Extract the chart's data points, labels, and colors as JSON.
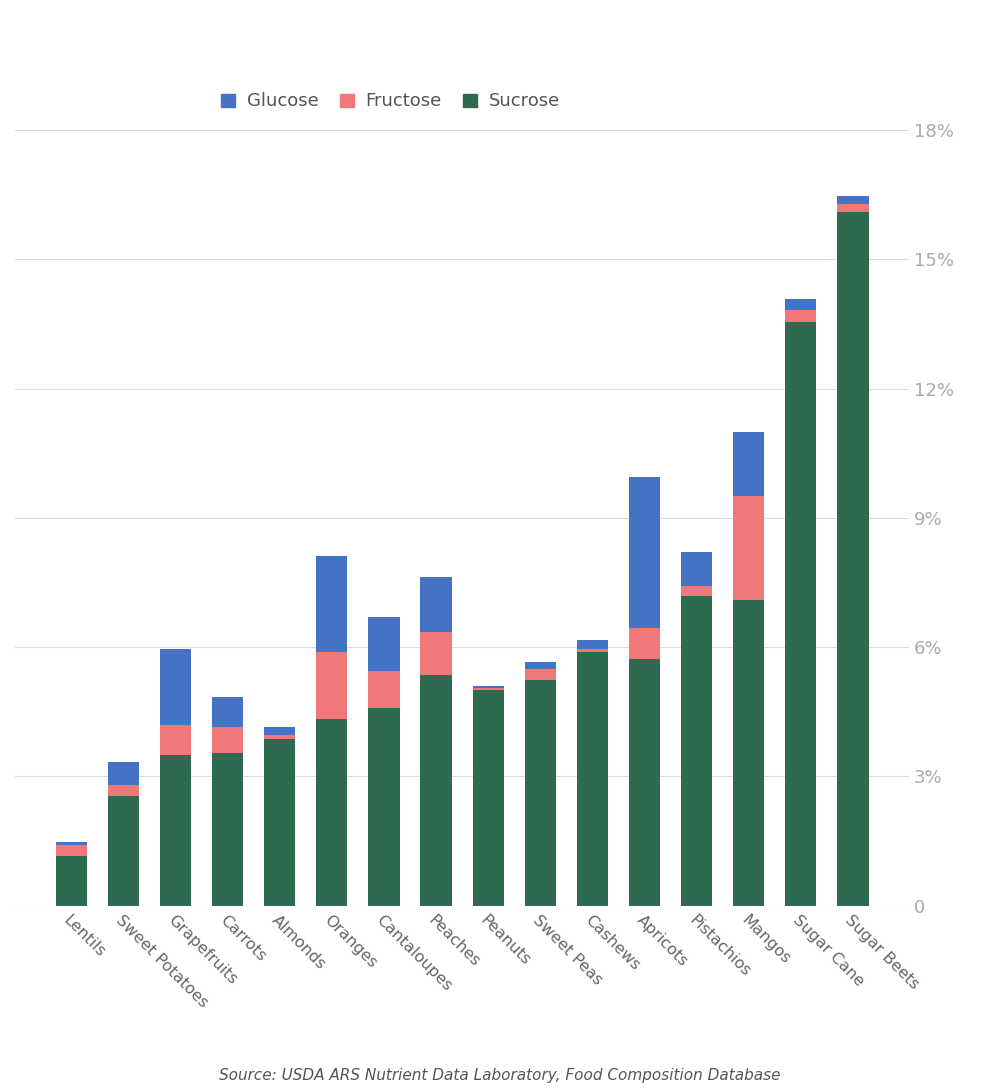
{
  "categories": [
    "Lentils",
    "Sweet Potatoes",
    "Grapefruits",
    "Carrots",
    "Almonds",
    "Oranges",
    "Cantaloupes",
    "Peaches",
    "Peanuts",
    "Sweet Peas",
    "Cashews",
    "Apricots",
    "Pistachios",
    "Mangos",
    "Sugar Cane",
    "Sugar Beets"
  ],
  "glucose": [
    0.08,
    0.53,
    1.77,
    0.7,
    0.18,
    2.24,
    1.25,
    1.28,
    0.04,
    0.16,
    0.22,
    3.5,
    0.8,
    1.48,
    0.27,
    0.19
  ],
  "fructose": [
    0.25,
    0.25,
    0.7,
    0.6,
    0.1,
    1.55,
    0.88,
    1.0,
    0.06,
    0.25,
    0.05,
    0.72,
    0.22,
    2.42,
    0.27,
    0.19
  ],
  "sucrose": [
    1.15,
    2.55,
    3.5,
    3.55,
    3.87,
    4.33,
    4.58,
    5.35,
    5.0,
    5.25,
    5.9,
    5.72,
    7.2,
    7.1,
    13.55,
    16.1
  ],
  "glucose_color": "#4472C4",
  "fructose_color": "#F07878",
  "sucrose_color": "#2D6A4F",
  "background_color": "#FFFFFF",
  "grid_color": "#DDDDDD",
  "tick_color": "#AAAAAA",
  "source_text": "Source: USDA ARS Nutrient Data Laboratory, Food Composition Database",
  "legend_labels": [
    "Glucose",
    "Fructose",
    "Sucrose"
  ],
  "yticks": [
    0,
    3,
    6,
    9,
    12,
    15,
    18
  ],
  "ytick_labels": [
    "0",
    "3%",
    "6%",
    "9%",
    "12%",
    "15%",
    "18%"
  ]
}
